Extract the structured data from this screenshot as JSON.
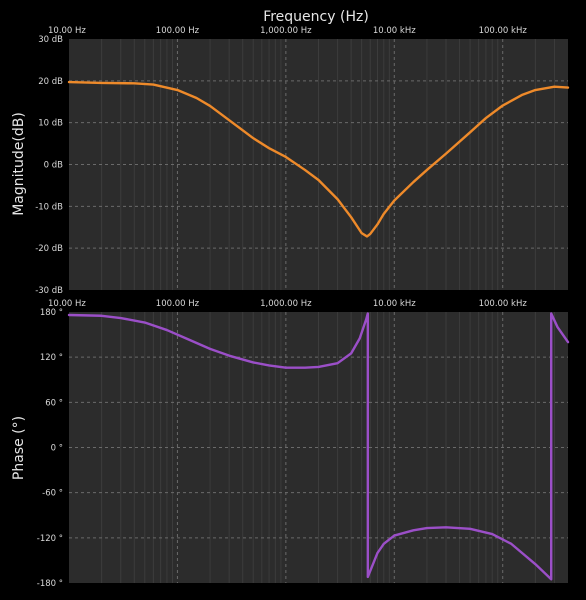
{
  "chart_data": [
    {
      "type": "line",
      "title": "Frequency (Hz)",
      "xlabel": "",
      "ylabel": "Magnitude(dB)",
      "xscale": "log",
      "xlim": [
        10,
        400000
      ],
      "ylim": [
        -30,
        30
      ],
      "x_ticks": [
        10,
        100,
        1000,
        10000,
        100000
      ],
      "x_tick_labels": [
        "10.00 Hz",
        "100.00 Hz",
        "1,000.00 Hz",
        "10.00 kHz",
        "100.00 kHz"
      ],
      "y_ticks": [
        -30,
        -20,
        -10,
        0,
        10,
        20,
        30
      ],
      "y_tick_labels": [
        "-30 dB",
        "-20 dB",
        "-10 dB",
        "0 dB",
        "10 dB",
        "20 dB",
        "30 dB"
      ],
      "grid": true,
      "series": [
        {
          "color": "#ee8a2a",
          "x": [
            10,
            20,
            40,
            60,
            100,
            150,
            200,
            300,
            500,
            700,
            1000,
            1500,
            2000,
            3000,
            4000,
            5000,
            5600,
            6000,
            7000,
            8000,
            10000,
            15000,
            20000,
            30000,
            50000,
            70000,
            100000,
            150000,
            200000,
            300000,
            400000
          ],
          "y": [
            19.7,
            19.5,
            19.4,
            19.1,
            17.8,
            15.9,
            14.0,
            10.6,
            6.3,
            3.9,
            1.8,
            -1.3,
            -3.7,
            -8.3,
            -12.6,
            -16.4,
            -17.2,
            -16.6,
            -14.3,
            -11.8,
            -8.6,
            -4.2,
            -1.3,
            2.6,
            7.7,
            11.1,
            14.1,
            16.6,
            17.8,
            18.6,
            18.4
          ]
        }
      ]
    },
    {
      "type": "line",
      "xlabel": "",
      "ylabel": "Phase (°)",
      "xscale": "log",
      "xlim": [
        10,
        400000
      ],
      "ylim": [
        -180,
        180
      ],
      "x_ticks": [
        10,
        100,
        1000,
        10000,
        100000
      ],
      "x_tick_labels": [
        "10.00 Hz",
        "100.00 Hz",
        "1,000.00 Hz",
        "10.00 kHz",
        "100.00 kHz"
      ],
      "y_ticks": [
        -180,
        -120,
        -60,
        0,
        60,
        120,
        180
      ],
      "y_tick_labels": [
        "-180 °",
        "-120 °",
        "-60 °",
        "0 °",
        "60 °",
        "120 °",
        "180 °"
      ],
      "grid": true,
      "series": [
        {
          "color": "#9b4fc8",
          "x": [
            10,
            20,
            30,
            50,
            80,
            120,
            200,
            300,
            500,
            700,
            1000,
            1500,
            2000,
            3000,
            4000,
            4800,
            5500,
            5700,
            5700,
            6000,
            7000,
            8000,
            10000,
            15000,
            20000,
            30000,
            50000,
            80000,
            120000,
            200000,
            280000,
            280000,
            320000,
            400000
          ],
          "y": [
            176,
            175,
            172,
            166,
            156,
            145,
            131,
            122,
            113,
            109,
            106,
            106,
            107,
            112,
            125,
            145,
            170,
            178,
            -172,
            -164,
            -140,
            -128,
            -117,
            -110,
            -107,
            -106,
            -108,
            -115,
            -128,
            -155,
            -175,
            178,
            160,
            140
          ]
        }
      ]
    }
  ]
}
